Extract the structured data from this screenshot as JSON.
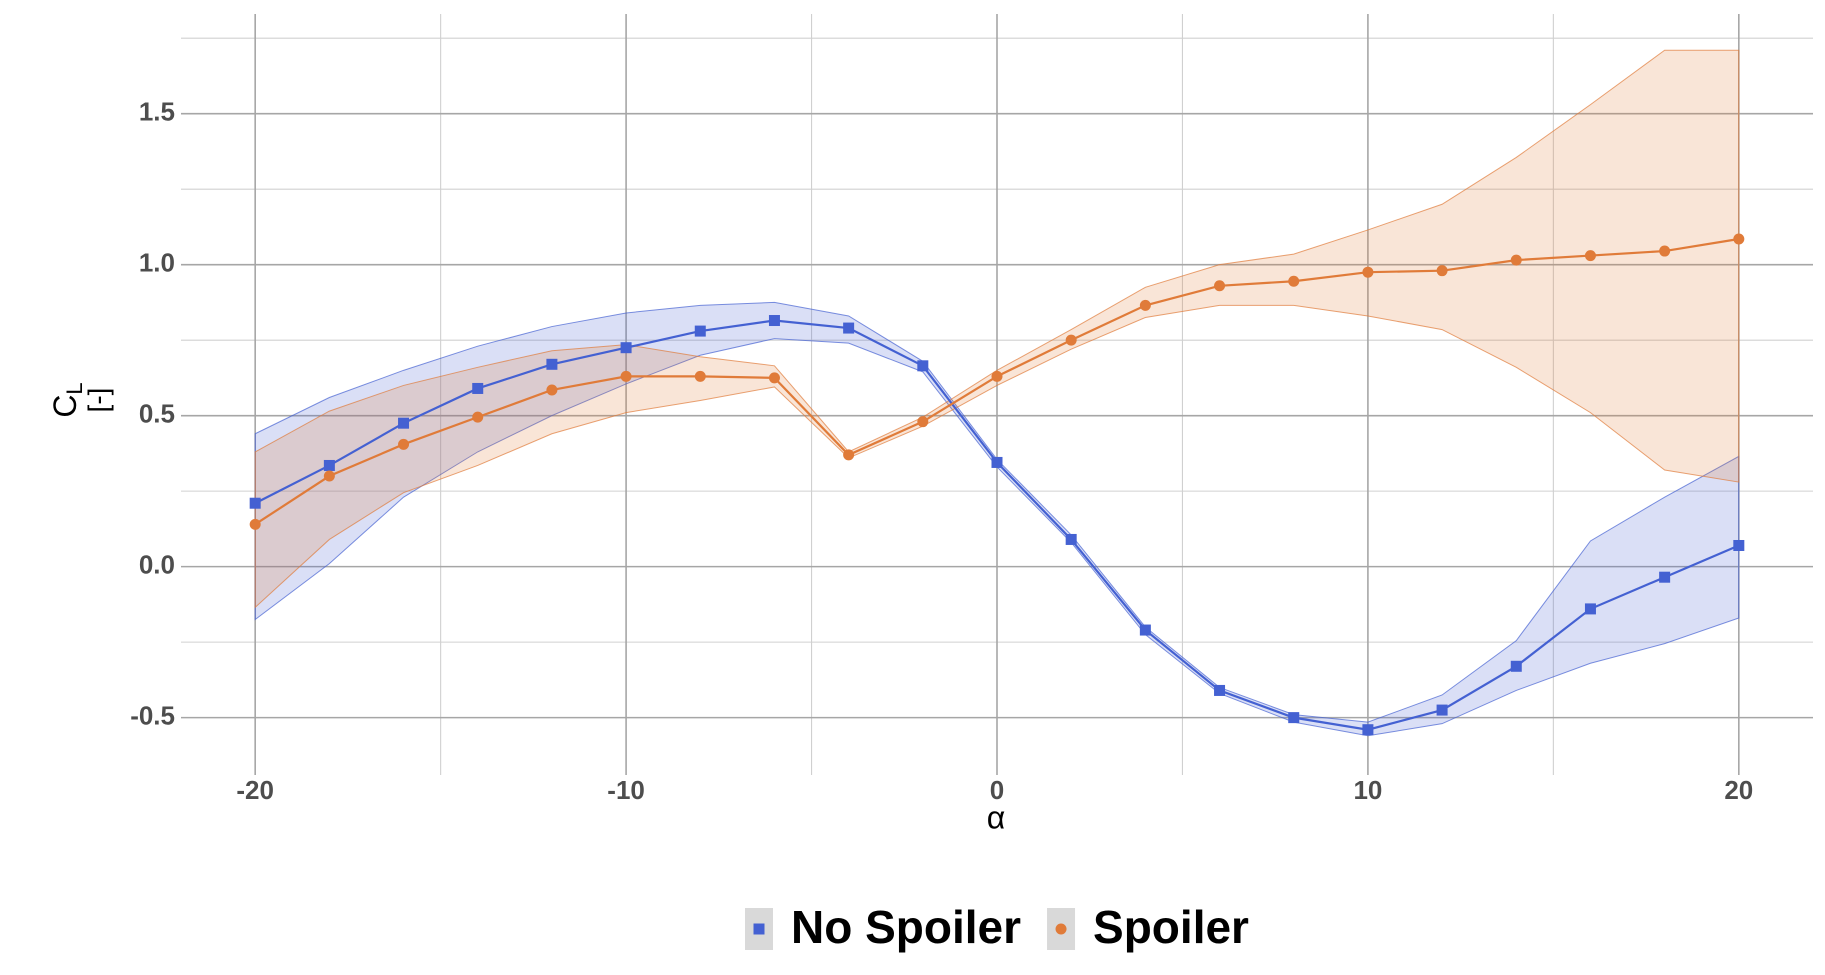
{
  "chart_data": {
    "type": "line",
    "x_label": "α",
    "y_label": "C",
    "y_label_sub": "L",
    "y_label_unit": "[-]",
    "x": [
      -20,
      -18,
      -16,
      -14,
      -12,
      -10,
      -8,
      -6,
      -4,
      -2,
      0,
      2,
      4,
      6,
      8,
      10,
      12,
      14,
      16,
      18,
      20
    ],
    "series": [
      {
        "name": "No Spoiler",
        "color": "#4461d2",
        "marker": "square",
        "values": [
          0.21,
          0.335,
          0.475,
          0.59,
          0.67,
          0.725,
          0.78,
          0.815,
          0.79,
          0.665,
          0.345,
          0.09,
          -0.21,
          -0.41,
          -0.5,
          -0.54,
          -0.475,
          -0.33,
          -0.14,
          -0.035,
          0.07
        ],
        "upper": [
          0.44,
          0.56,
          0.65,
          0.73,
          0.795,
          0.84,
          0.865,
          0.875,
          0.83,
          0.68,
          0.355,
          0.105,
          -0.2,
          -0.4,
          -0.49,
          -0.515,
          -0.425,
          -0.245,
          0.085,
          0.23,
          0.365
        ],
        "lower": [
          -0.175,
          0.01,
          0.23,
          0.38,
          0.5,
          0.605,
          0.7,
          0.755,
          0.74,
          0.645,
          0.33,
          0.08,
          -0.225,
          -0.42,
          -0.515,
          -0.56,
          -0.52,
          -0.41,
          -0.32,
          -0.255,
          -0.17
        ]
      },
      {
        "name": "Spoiler",
        "color": "#e07b39",
        "marker": "circle",
        "values": [
          0.14,
          0.3,
          0.405,
          0.495,
          0.585,
          0.63,
          0.63,
          0.625,
          0.37,
          0.48,
          0.63,
          0.75,
          0.865,
          0.93,
          0.945,
          0.975,
          0.98,
          1.015,
          1.03,
          1.045,
          1.085
        ],
        "upper": [
          0.38,
          0.515,
          0.6,
          0.66,
          0.715,
          0.735,
          0.695,
          0.665,
          0.38,
          0.495,
          0.65,
          0.785,
          0.925,
          1.0,
          1.035,
          1.115,
          1.2,
          1.355,
          1.53,
          1.71,
          1.71
        ],
        "lower": [
          -0.135,
          0.09,
          0.245,
          0.335,
          0.44,
          0.51,
          0.55,
          0.595,
          0.36,
          0.465,
          0.6,
          0.72,
          0.825,
          0.865,
          0.865,
          0.83,
          0.785,
          0.66,
          0.51,
          0.32,
          0.28
        ]
      }
    ],
    "xlim": [
      -22,
      22
    ],
    "ylim": [
      -0.69,
      1.83
    ],
    "xticks": [
      -20,
      -10,
      0,
      10,
      20
    ],
    "yticks": [
      -0.5,
      {
        "value": 0,
        "label": "0.0"
      },
      0.5,
      {
        "value": 1,
        "label": "1.0"
      },
      1.5
    ],
    "grid": true,
    "minor_grid": true,
    "legend": "bottom"
  }
}
